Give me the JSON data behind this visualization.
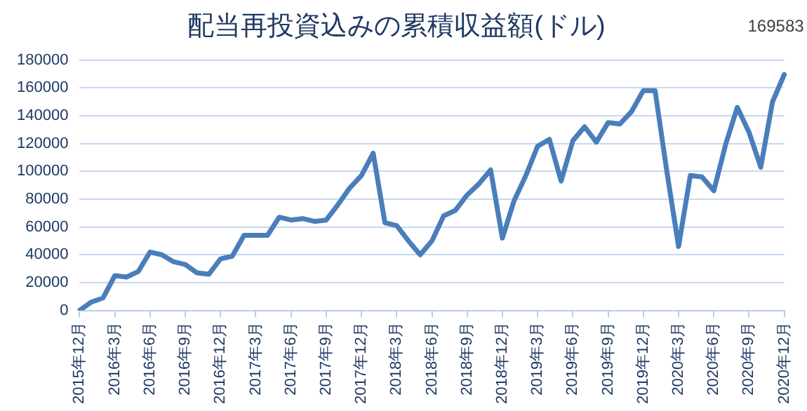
{
  "chart_data": {
    "type": "line",
    "title": "配当再投資込みの累積収益額(ドル)",
    "categories": [
      "2015年12月",
      null,
      null,
      "2016年3月",
      null,
      null,
      "2016年6月",
      null,
      null,
      "2016年9月",
      null,
      null,
      "2016年12月",
      null,
      null,
      "2017年3月",
      null,
      null,
      "2017年6月",
      null,
      null,
      "2017年9月",
      null,
      null,
      "2017年12月",
      null,
      null,
      "2018年3月",
      null,
      null,
      "2018年6月",
      null,
      null,
      "2018年9月",
      null,
      null,
      "2018年12月",
      null,
      null,
      "2019年3月",
      null,
      null,
      "2019年6月",
      null,
      null,
      "2019年9月",
      null,
      null,
      "2019年12月",
      null,
      null,
      "2020年3月",
      null,
      null,
      "2020年6月",
      null,
      null,
      "2020年9月",
      null,
      null,
      "2020年12月"
    ],
    "series": [
      {
        "color": "#4a7ebb",
        "values": [
          0,
          6000,
          9000,
          25000,
          24000,
          28000,
          42000,
          40000,
          35000,
          33000,
          27000,
          26000,
          37000,
          39000,
          54000,
          54000,
          54000,
          67000,
          65000,
          66000,
          64000,
          65000,
          76000,
          88000,
          97000,
          113000,
          63000,
          61000,
          50000,
          40000,
          50000,
          68000,
          72000,
          83000,
          91000,
          101000,
          52000,
          79000,
          97000,
          118000,
          123000,
          93000,
          122000,
          132000,
          121000,
          135000,
          134000,
          143000,
          158000,
          158000,
          100000,
          46000,
          97000,
          96000,
          86000,
          119000,
          146000,
          128000,
          103000,
          150000,
          169583
        ],
        "value_labels": [
          null,
          null,
          null,
          null,
          null,
          null,
          null,
          null,
          null,
          null,
          null,
          null,
          null,
          null,
          null,
          null,
          null,
          null,
          null,
          null,
          null,
          null,
          null,
          null,
          null,
          null,
          null,
          null,
          null,
          null,
          null,
          null,
          null,
          null,
          null,
          null,
          null,
          null,
          null,
          null,
          null,
          null,
          null,
          null,
          null,
          null,
          null,
          null,
          null,
          null,
          null,
          null,
          null,
          null,
          null,
          null,
          null,
          null,
          null,
          null,
          "169583"
        ]
      }
    ],
    "ylim": [
      0,
      180000
    ],
    "yticks": [
      0,
      20000,
      40000,
      60000,
      80000,
      100000,
      120000,
      140000,
      160000,
      180000
    ],
    "grid": "y",
    "legend": false,
    "marker": "none",
    "line_style": "solid"
  }
}
